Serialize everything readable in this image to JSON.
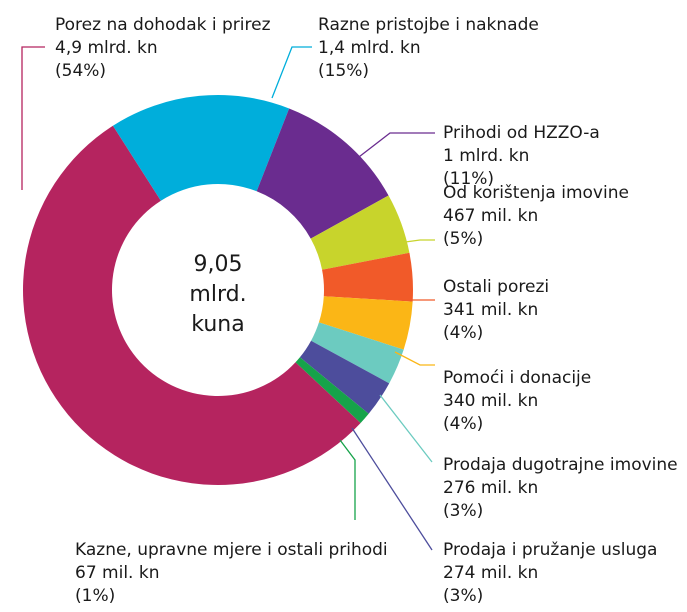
{
  "chart_data": {
    "type": "donut",
    "center_label": [
      "9,05",
      "mlrd.",
      "kuna"
    ],
    "categories": [
      "Porez na dohodak i prirez",
      "Razne pristojbe i naknade",
      "Prihodi od HZZO-a",
      "Od korištenja imovine",
      "Ostali porezi",
      "Pomoći i donacije",
      "Prodaja dugotrajne imovine",
      "Prodaja i pružanje usluga",
      "Kazne, upravne mjere i ostali prihodi"
    ],
    "amounts": [
      "4,9 mlrd. kn",
      "1,4 mlrd. kn",
      "1 mlrd. kn",
      "467 mil. kn",
      "341 mil. kn",
      "340 mil. kn",
      "276 mil. kn",
      "274 mil. kn",
      "67 mil. kn"
    ],
    "values": [
      54,
      15,
      11,
      5,
      4,
      4,
      3,
      3,
      1
    ],
    "value_labels": [
      "(54%)",
      "(15%)",
      "(11%)",
      "(5%)",
      "(4%)",
      "(4%)",
      "(3%)",
      "(3%)",
      "(1%)"
    ],
    "colors": [
      "#b5245f",
      "#00aedb",
      "#6a2c8f",
      "#c8d42c",
      "#f15a29",
      "#fbb616",
      "#6ccbc0",
      "#4d4d9c",
      "#16a34a"
    ]
  }
}
